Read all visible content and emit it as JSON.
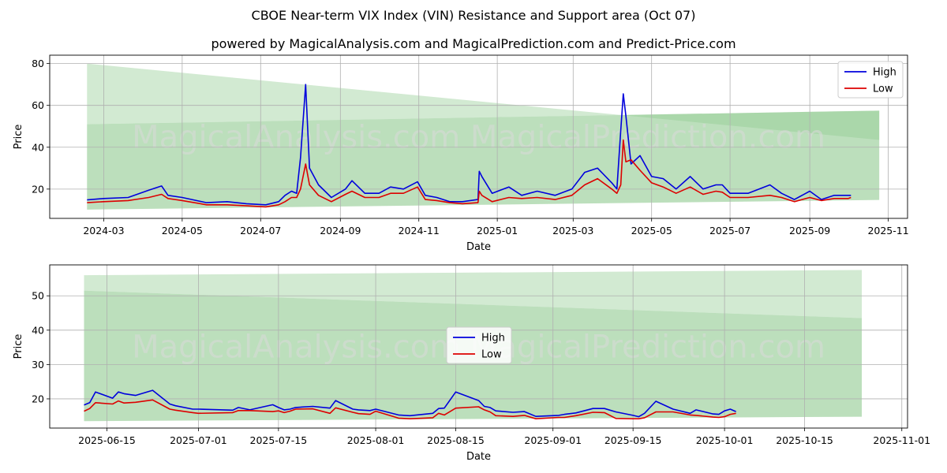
{
  "title": "CBOE Near-term VIX Index (VIN) Resistance and Support area (Oct 07)",
  "subtitle": "powered by MagicalAnalysis.com and MagicalPrediction.com and Predict-Price.com",
  "watermark": "MagicalAnalysis.com    MagicalPrediction.com",
  "colors": {
    "high": "#0000dd",
    "low": "#dd0000",
    "band": "#8fca8f"
  },
  "chart_data": [
    {
      "type": "line",
      "xlabel": "Date",
      "ylabel": "Price",
      "legend": [
        "High",
        "Low"
      ],
      "legend_position": "top-right",
      "grid": true,
      "xlim": [
        "2024-01-19",
        "2025-11-16"
      ],
      "ylim": [
        6,
        84
      ],
      "xtick_labels": [
        "2024-03",
        "2024-05",
        "2024-07",
        "2024-09",
        "2024-11",
        "2025-01",
        "2025-03",
        "2025-05",
        "2025-07",
        "2025-09",
        "2025-11"
      ],
      "xtick_dates": [
        "2024-03-01",
        "2024-05-01",
        "2024-07-01",
        "2024-09-01",
        "2024-11-01",
        "2025-01-01",
        "2025-03-01",
        "2025-05-01",
        "2025-07-01",
        "2025-09-01",
        "2025-11-01"
      ],
      "ytick_labels": [
        "20",
        "40",
        "60",
        "80"
      ],
      "bands": {
        "x": [
          "2024-02-17",
          "2025-10-25"
        ],
        "outer_upper": [
          80,
          43.5
        ],
        "outer_lower": [
          51,
          57.5
        ],
        "inner_upper": [
          51,
          57.5
        ],
        "inner_lower": [
          10.2,
          14.8
        ]
      },
      "series": [
        {
          "name": "High",
          "x": [
            "2024-02-17",
            "2024-03-01",
            "2024-03-20",
            "2024-04-05",
            "2024-04-15",
            "2024-04-20",
            "2024-05-01",
            "2024-05-20",
            "2024-06-05",
            "2024-06-20",
            "2024-07-05",
            "2024-07-15",
            "2024-07-20",
            "2024-07-25",
            "2024-07-29",
            "2024-08-01",
            "2024-08-05",
            "2024-08-08",
            "2024-08-15",
            "2024-08-25",
            "2024-09-05",
            "2024-09-10",
            "2024-09-20",
            "2024-10-01",
            "2024-10-10",
            "2024-10-20",
            "2024-10-31",
            "2024-11-06",
            "2024-11-15",
            "2024-11-25",
            "2024-12-05",
            "2024-12-17",
            "2024-12-18",
            "2024-12-20",
            "2024-12-28",
            "2025-01-10",
            "2025-01-20",
            "2025-02-01",
            "2025-02-15",
            "2025-02-28",
            "2025-03-10",
            "2025-03-20",
            "2025-03-31",
            "2025-04-04",
            "2025-04-07",
            "2025-04-09",
            "2025-04-11",
            "2025-04-15",
            "2025-04-22",
            "2025-05-01",
            "2025-05-10",
            "2025-05-20",
            "2025-05-31",
            "2025-06-10",
            "2025-06-20",
            "2025-06-25",
            "2025-07-01",
            "2025-07-15",
            "2025-08-01",
            "2025-08-10",
            "2025-08-20",
            "2025-09-01",
            "2025-09-10",
            "2025-09-20",
            "2025-10-01",
            "2025-10-03"
          ],
          "values": [
            14.8,
            15.5,
            16,
            19.5,
            21.5,
            17,
            16,
            13.5,
            14,
            13,
            12.5,
            14,
            17,
            19,
            18,
            35,
            70,
            30,
            22,
            16,
            20,
            24,
            18,
            18,
            21,
            20,
            23.5,
            17,
            16,
            14,
            14,
            15,
            28.5,
            26,
            18,
            21,
            17,
            19,
            17,
            20,
            28,
            30,
            23,
            20,
            48,
            65.5,
            55,
            32,
            36,
            26,
            25,
            20,
            26,
            20,
            22,
            22,
            18,
            18,
            22,
            18,
            15,
            19,
            15,
            17,
            17,
            17
          ]
        },
        {
          "name": "Low",
          "x": [
            "2024-02-17",
            "2024-03-01",
            "2024-03-20",
            "2024-04-05",
            "2024-04-15",
            "2024-04-20",
            "2024-05-01",
            "2024-05-20",
            "2024-06-05",
            "2024-06-20",
            "2024-07-05",
            "2024-07-15",
            "2024-07-20",
            "2024-07-25",
            "2024-07-29",
            "2024-08-01",
            "2024-08-05",
            "2024-08-08",
            "2024-08-15",
            "2024-08-25",
            "2024-09-05",
            "2024-09-10",
            "2024-09-20",
            "2024-10-01",
            "2024-10-10",
            "2024-10-20",
            "2024-10-31",
            "2024-11-06",
            "2024-11-15",
            "2024-11-25",
            "2024-12-05",
            "2024-12-17",
            "2024-12-18",
            "2024-12-20",
            "2024-12-28",
            "2025-01-10",
            "2025-01-20",
            "2025-02-01",
            "2025-02-15",
            "2025-02-28",
            "2025-03-10",
            "2025-03-20",
            "2025-03-31",
            "2025-04-04",
            "2025-04-07",
            "2025-04-09",
            "2025-04-11",
            "2025-04-15",
            "2025-04-22",
            "2025-05-01",
            "2025-05-10",
            "2025-05-20",
            "2025-05-31",
            "2025-06-10",
            "2025-06-20",
            "2025-06-25",
            "2025-07-01",
            "2025-07-15",
            "2025-08-01",
            "2025-08-10",
            "2025-08-20",
            "2025-09-01",
            "2025-09-10",
            "2025-09-20",
            "2025-10-01",
            "2025-10-03"
          ],
          "values": [
            13.5,
            14,
            14.5,
            16,
            17.5,
            15.5,
            14.5,
            12.5,
            12.5,
            12,
            11.5,
            12.5,
            14,
            16,
            16,
            20,
            32,
            22,
            17,
            14,
            17.5,
            19,
            16,
            16,
            18,
            18,
            21,
            15,
            14.5,
            13.5,
            13,
            13.5,
            19,
            17,
            14,
            16,
            15.5,
            16,
            15,
            17,
            22,
            25,
            20,
            18,
            22,
            43.5,
            33,
            34,
            29,
            23,
            21,
            18,
            21,
            17.5,
            19,
            18.5,
            16,
            16,
            17,
            16,
            14,
            16,
            14.5,
            15.5,
            15.5,
            16
          ]
        }
      ]
    },
    {
      "type": "line",
      "xlabel": "Date",
      "ylabel": "Price",
      "legend": [
        "High",
        "Low"
      ],
      "legend_position": "center",
      "grid": true,
      "xlim": [
        "2025-06-05",
        "2025-11-02"
      ],
      "ylim": [
        11.5,
        59
      ],
      "xtick_labels": [
        "2025-06-15",
        "2025-07-01",
        "2025-07-15",
        "2025-08-01",
        "2025-08-15",
        "2025-09-01",
        "2025-09-15",
        "2025-10-01",
        "2025-10-15",
        "2025-11-01"
      ],
      "xtick_dates": [
        "2025-06-15",
        "2025-07-01",
        "2025-07-15",
        "2025-08-01",
        "2025-08-15",
        "2025-09-01",
        "2025-09-15",
        "2025-10-01",
        "2025-10-15",
        "2025-11-01"
      ],
      "ytick_labels": [
        "20",
        "30",
        "40",
        "50"
      ],
      "bands": {
        "x": [
          "2025-06-11",
          "2025-10-25"
        ],
        "outer_upper": [
          56,
          57.5
        ],
        "outer_lower": [
          51.5,
          43.5
        ],
        "inner_upper": [
          51.5,
          43.5
        ],
        "inner_lower": [
          13.5,
          14.8
        ]
      },
      "series": [
        {
          "name": "High",
          "x": [
            "2025-06-11",
            "2025-06-12",
            "2025-06-13",
            "2025-06-16",
            "2025-06-17",
            "2025-06-18",
            "2025-06-20",
            "2025-06-23",
            "2025-06-26",
            "2025-06-27",
            "2025-06-30",
            "2025-07-01",
            "2025-07-07",
            "2025-07-08",
            "2025-07-10",
            "2025-07-14",
            "2025-07-15",
            "2025-07-16",
            "2025-07-17",
            "2025-07-18",
            "2025-07-21",
            "2025-07-24",
            "2025-07-25",
            "2025-07-28",
            "2025-07-29",
            "2025-07-31",
            "2025-08-01",
            "2025-08-05",
            "2025-08-06",
            "2025-08-07",
            "2025-08-11",
            "2025-08-12",
            "2025-08-13",
            "2025-08-15",
            "2025-08-19",
            "2025-08-20",
            "2025-08-21",
            "2025-08-22",
            "2025-08-25",
            "2025-08-27",
            "2025-08-29",
            "2025-09-02",
            "2025-09-03",
            "2025-09-05",
            "2025-09-08",
            "2025-09-10",
            "2025-09-12",
            "2025-09-15",
            "2025-09-16",
            "2025-09-17",
            "2025-09-19",
            "2025-09-22",
            "2025-09-25",
            "2025-09-26",
            "2025-09-29",
            "2025-09-30",
            "2025-10-01",
            "2025-10-02",
            "2025-10-03"
          ],
          "values": [
            18.2,
            18.9,
            22,
            20.2,
            22,
            21.5,
            21,
            22.5,
            18.5,
            18,
            17,
            17,
            16.7,
            17.5,
            16.8,
            18.3,
            17.5,
            16.8,
            17,
            17.5,
            17.8,
            17.3,
            19.5,
            17,
            16.8,
            16.6,
            17,
            15.3,
            15.2,
            15.1,
            15.8,
            17.2,
            17.3,
            22,
            19.5,
            17.8,
            17.5,
            16.5,
            16.1,
            16.3,
            14.9,
            15.2,
            15.5,
            15.9,
            17.2,
            17.2,
            16.2,
            15.2,
            14.8,
            15.8,
            19.3,
            17,
            15.8,
            16.8,
            15.6,
            15.5,
            16.5,
            17,
            16.3
          ]
        },
        {
          "name": "Low",
          "x": [
            "2025-06-11",
            "2025-06-12",
            "2025-06-13",
            "2025-06-16",
            "2025-06-17",
            "2025-06-18",
            "2025-06-20",
            "2025-06-23",
            "2025-06-26",
            "2025-06-27",
            "2025-06-30",
            "2025-07-01",
            "2025-07-07",
            "2025-07-08",
            "2025-07-10",
            "2025-07-14",
            "2025-07-15",
            "2025-07-16",
            "2025-07-17",
            "2025-07-18",
            "2025-07-21",
            "2025-07-24",
            "2025-07-25",
            "2025-07-28",
            "2025-07-29",
            "2025-07-31",
            "2025-08-01",
            "2025-08-05",
            "2025-08-06",
            "2025-08-07",
            "2025-08-11",
            "2025-08-12",
            "2025-08-13",
            "2025-08-15",
            "2025-08-19",
            "2025-08-20",
            "2025-08-21",
            "2025-08-22",
            "2025-08-25",
            "2025-08-27",
            "2025-08-29",
            "2025-09-02",
            "2025-09-03",
            "2025-09-05",
            "2025-09-08",
            "2025-09-10",
            "2025-09-12",
            "2025-09-15",
            "2025-09-16",
            "2025-09-17",
            "2025-09-19",
            "2025-09-22",
            "2025-09-25",
            "2025-09-26",
            "2025-09-29",
            "2025-09-30",
            "2025-10-01",
            "2025-10-02",
            "2025-10-03"
          ],
          "values": [
            16.4,
            17.2,
            18.9,
            18.5,
            19.4,
            18.8,
            19,
            19.7,
            17,
            16.7,
            16,
            15.8,
            16,
            16.6,
            16.6,
            16.3,
            16.5,
            16,
            16.4,
            17,
            17.1,
            15.8,
            17.4,
            16.1,
            15.7,
            15.5,
            16.4,
            14.4,
            14.3,
            14.2,
            14.5,
            15.8,
            15.3,
            17.3,
            17.7,
            16.8,
            16.2,
            15.1,
            14.9,
            15.2,
            14.2,
            14.6,
            14.6,
            15.1,
            16.1,
            16,
            14.3,
            14.2,
            14.2,
            14.5,
            16.2,
            16.2,
            15.3,
            15.2,
            14.7,
            14.6,
            14.8,
            15.5,
            15.8
          ]
        }
      ]
    }
  ]
}
